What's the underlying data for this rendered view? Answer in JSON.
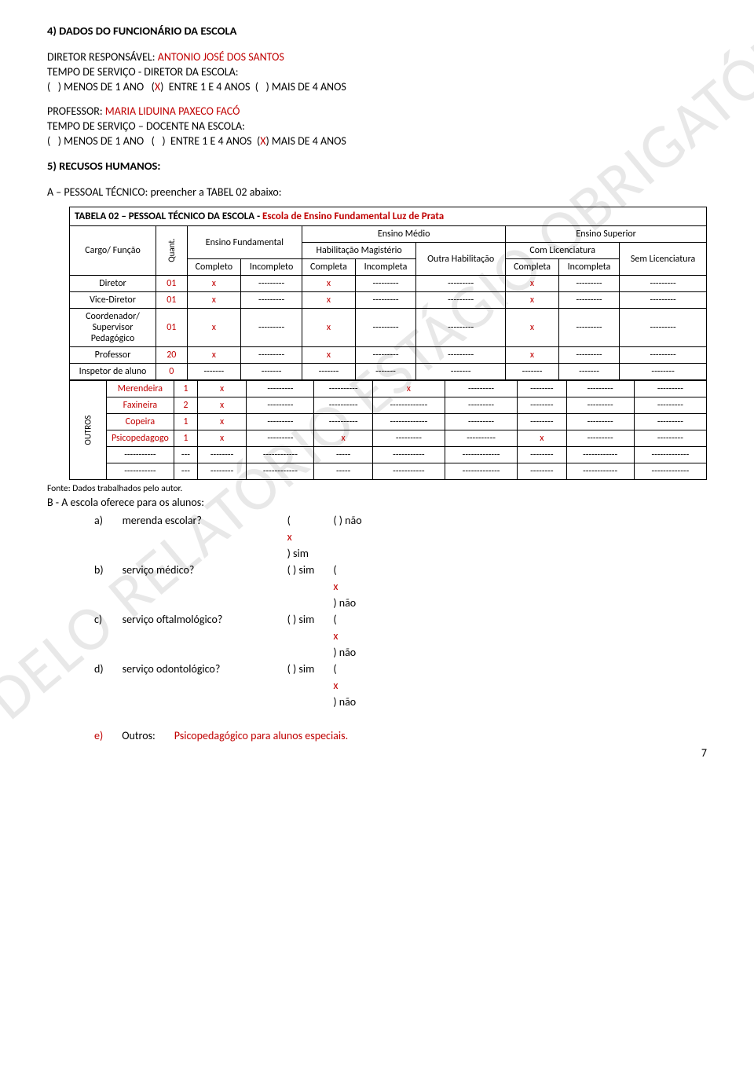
{
  "watermark": "MODELO RELATÓRIO ESTÁGIO OBRIGATÓRIO",
  "page_number": "7",
  "section4": {
    "title": "4) DADOS DO FUNCIONÁRIO DA ESCOLA",
    "diretor_label": "DIRETOR RESPONSÁVEL:",
    "diretor_name": "ANTONIO JOSÉ DOS SANTOS",
    "diretor_tempo_label": "TEMPO DE SERVIÇO - DIRETOR DA ESCOLA:",
    "diretor_options": "(   ) MENOS DE 1 ANO   (X)  ENTRE 1 E 4 ANOS  (   ) MAIS DE 4 ANOS",
    "professor_label": "PROFESSOR:",
    "professor_name": "MARIA LIDUINA PAXECO FACÓ",
    "professor_tempo_label": "TEMPO DE SERVIÇO – DOCENTE NA ESCOLA:",
    "professor_options": "(   ) MENOS DE 1 ANO   (   )  ENTRE 1 E 4 ANOS  (X) MAIS DE 4 ANOS"
  },
  "section5": {
    "title": "5) RECUSOS HUMANOS:",
    "subA": "A – PESSOAL TÉCNICO: preencher a TABEL 02 abaixo:"
  },
  "table": {
    "title_prefix": "TABELA 02 – PESSOAL TÉCNICO DA ESCOLA - ",
    "title_school": "Escola de Ensino Fundamental Luz de Prata",
    "headers": {
      "cargo": "Cargo/ Função",
      "quant": "Quant.",
      "ef": "Ensino Fundamental",
      "em": "Ensino Médio",
      "es": "Ensino Superior",
      "hab_mag": "Habilitação Magistério",
      "outra_hab": "Outra Habilitação",
      "com_lic": "Com Licenciatura",
      "sem_lic": "Sem Licenciatura",
      "completo": "Completo",
      "incompleto": "Incompleto",
      "completa": "Completa",
      "incompleta": "Incompleta"
    },
    "rows": [
      {
        "cargo": "Diretor",
        "q": "01",
        "c": [
          "x",
          "---------",
          "x",
          "---------",
          "---------",
          "x",
          "---------",
          "---------"
        ],
        "red_cargo": false,
        "red_q": true
      },
      {
        "cargo": "Vice-Diretor",
        "q": "01",
        "c": [
          "x",
          "---------",
          "x",
          "---------",
          "---------",
          "x",
          "---------",
          "---------"
        ],
        "red_cargo": false,
        "red_q": true
      },
      {
        "cargo": "Coordenador/ Supervisor Pedagógico",
        "q": "01",
        "c": [
          "x",
          "---------",
          "x",
          "---------",
          "---------",
          "x",
          "---------",
          "---------"
        ],
        "red_cargo": false,
        "red_q": true
      },
      {
        "cargo": "Professor",
        "q": "20",
        "c": [
          "x",
          "---------",
          "x",
          "---------",
          "---------",
          "x",
          "---------",
          "---------"
        ],
        "red_cargo": false,
        "red_q": true
      },
      {
        "cargo": "Inspetor de aluno",
        "q": "0",
        "c": [
          "-------",
          "-------",
          "-------",
          "-------",
          "-------",
          "-------",
          "-------",
          "--------"
        ],
        "red_cargo": false,
        "red_q": true
      }
    ],
    "outros_label": "OUTROS",
    "outros": [
      {
        "cargo": "Merendeira",
        "q": "1",
        "c": [
          "x",
          "---------",
          "----------",
          "x",
          "---------",
          "--------",
          "---------",
          "---------"
        ],
        "red_cargo": true,
        "red_q": true
      },
      {
        "cargo": "Faxineira",
        "q": "2",
        "c": [
          "x",
          "---------",
          "----------",
          "-------------",
          "---------",
          "--------",
          "---------",
          "---------"
        ],
        "red_cargo": true,
        "red_q": true
      },
      {
        "cargo": "Copeira",
        "q": "1",
        "c": [
          "x",
          "---------",
          "----------",
          "-------------",
          "---------",
          "--------",
          "---------",
          "---------"
        ],
        "red_cargo": true,
        "red_q": true
      },
      {
        "cargo": "Psicopedagogo",
        "q": "1",
        "c": [
          "x",
          "---------",
          "x",
          "---------",
          "----------",
          "x",
          "---------",
          "---------"
        ],
        "red_cargo": true,
        "red_q": true
      },
      {
        "cargo": "-----------",
        "q": "---",
        "c": [
          "--------",
          "------------",
          "-----",
          "-----------",
          "-------------",
          "--------",
          "------------",
          "-------------"
        ],
        "red_cargo": false,
        "red_q": false
      },
      {
        "cargo": "-----------",
        "q": "---",
        "c": [
          "--------",
          "------------",
          "-----",
          "-----------",
          "-------------",
          "--------",
          "------------",
          "-------------"
        ],
        "red_cargo": false,
        "red_q": false
      }
    ]
  },
  "source_note": "Fonte: Dados trabalhados pelo autor.",
  "subB": "B - A escola oferece para os alunos:",
  "qa": [
    {
      "letter": "a)",
      "q": "merenda escolar?",
      "sim": "(x) sim",
      "nao": "(   ) não"
    },
    {
      "letter": "b)",
      "q": "serviço médico?",
      "sim": "(   ) sim",
      "nao": "(x) não"
    },
    {
      "letter": "c)",
      "q": "serviço oftalmológico?",
      "sim": "(   ) sim",
      "nao": "(x) não"
    },
    {
      "letter": "d)",
      "q": "serviço odontológico?",
      "sim": "(   ) sim",
      "nao": "(x) não"
    }
  ],
  "outros_e": {
    "letter": "e)",
    "label": "Outros:",
    "text": "Psicopedagógico para alunos especiais."
  },
  "colors": {
    "red": "#c00000",
    "text": "#000000",
    "watermark": "rgba(150,150,150,0.22)"
  }
}
